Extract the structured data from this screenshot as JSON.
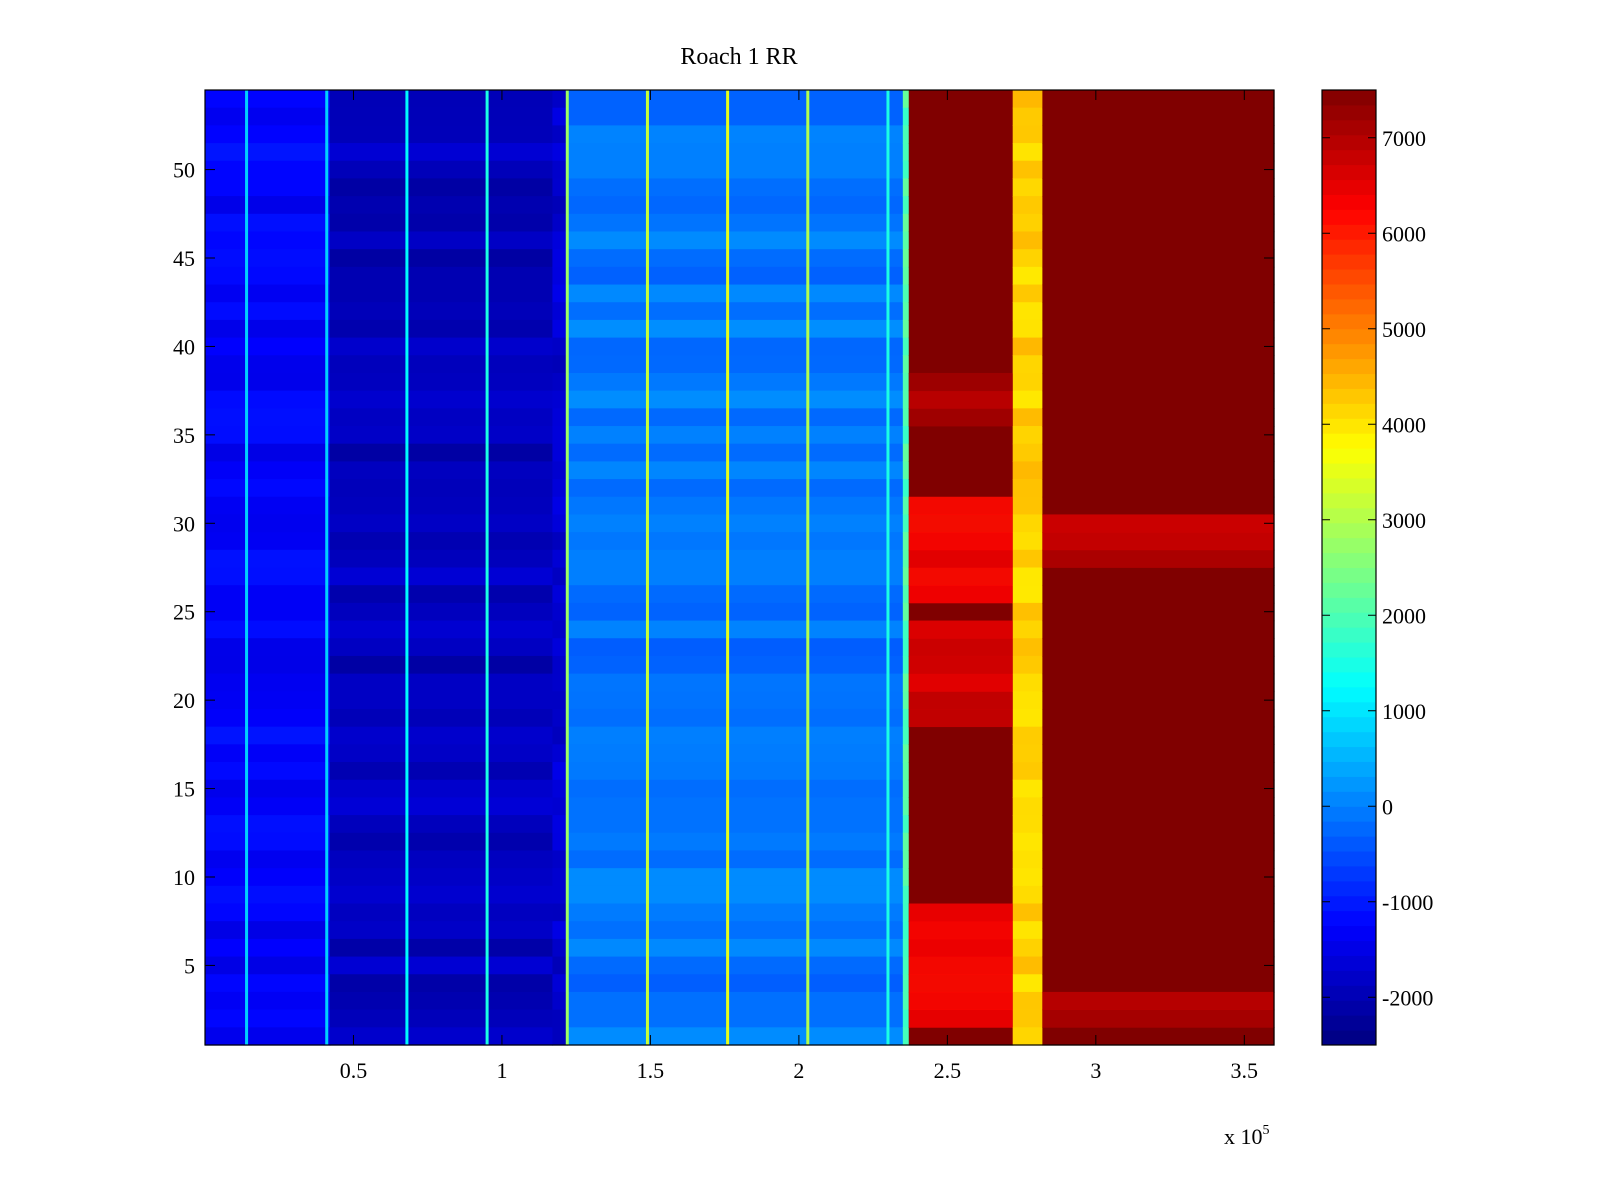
{
  "chart_data": {
    "type": "heatmap",
    "title": "Roach 1 RR",
    "xlabel": "",
    "ylabel": "",
    "x_multiplier_label": {
      "base": "x 10",
      "exponent": "5"
    },
    "xlim": [
      0,
      3.6
    ],
    "ylim": [
      0.5,
      54.5
    ],
    "x_ticks": [
      0.5,
      1,
      1.5,
      2,
      2.5,
      3,
      3.5
    ],
    "x_tick_labels": [
      "0.5",
      "1",
      "1.5",
      "2",
      "2.5",
      "3",
      "3.5"
    ],
    "y_ticks": [
      5,
      10,
      15,
      20,
      25,
      30,
      35,
      40,
      45,
      50
    ],
    "y_tick_labels": [
      "5",
      "10",
      "15",
      "20",
      "25",
      "30",
      "35",
      "40",
      "45",
      "50"
    ],
    "rows": 54,
    "colormap": "jet",
    "color_range": [
      -2500,
      7500
    ],
    "colorbar_ticks": [
      -2000,
      -1000,
      0,
      1000,
      2000,
      3000,
      4000,
      5000,
      6000,
      7000
    ],
    "colorbar_tick_labels": [
      "-2000",
      "-1000",
      "0",
      "1000",
      "2000",
      "3000",
      "4000",
      "5000",
      "6000",
      "7000"
    ],
    "x_units_scale": 100000,
    "bands": [
      {
        "x_start": 0,
        "x_end": 0.42,
        "value": -1300
      },
      {
        "x_start": 0.42,
        "x_end": 1.17,
        "value": -1900
      },
      {
        "x_start": 1.17,
        "x_end": 1.22,
        "value": -1700
      },
      {
        "x_start": 1.22,
        "x_end": 2.35,
        "value": -100
      },
      {
        "x_start": 2.35,
        "x_end": 2.37,
        "value": 2000
      },
      {
        "x_start": 2.37,
        "x_end": 2.72,
        "value": 7500
      },
      {
        "x_start": 2.72,
        "x_end": 2.82,
        "value": 4200
      },
      {
        "x_start": 2.82,
        "x_end": 3.6,
        "value": 7500
      }
    ],
    "spike_lines": [
      {
        "x": 0.14,
        "value": 800
      },
      {
        "x": 0.41,
        "value": 800
      },
      {
        "x": 0.68,
        "value": 1200
      },
      {
        "x": 0.95,
        "value": 1500
      },
      {
        "x": 1.22,
        "value": 2800
      },
      {
        "x": 1.49,
        "value": 3200
      },
      {
        "x": 1.76,
        "value": 3500
      },
      {
        "x": 2.03,
        "value": 3000
      },
      {
        "x": 2.3,
        "value": 1500
      }
    ],
    "row_features": [
      {
        "rows": [
          2,
          8
        ],
        "x_start": 2.37,
        "x_end": 2.72,
        "value": 6200
      },
      {
        "rows": [
          19,
          24
        ],
        "x_start": 2.37,
        "x_end": 2.72,
        "value": 6600
      },
      {
        "rows": [
          26,
          31
        ],
        "x_start": 2.37,
        "x_end": 2.72,
        "value": 6300
      },
      {
        "rows": [
          28,
          30
        ],
        "x_start": 2.82,
        "x_end": 3.6,
        "value": 6900
      },
      {
        "rows": [
          2,
          3
        ],
        "x_start": 2.82,
        "x_end": 3.6,
        "value": 7000
      },
      {
        "rows": [
          36,
          38
        ],
        "x_start": 2.37,
        "x_end": 2.72,
        "value": 7000
      }
    ]
  }
}
